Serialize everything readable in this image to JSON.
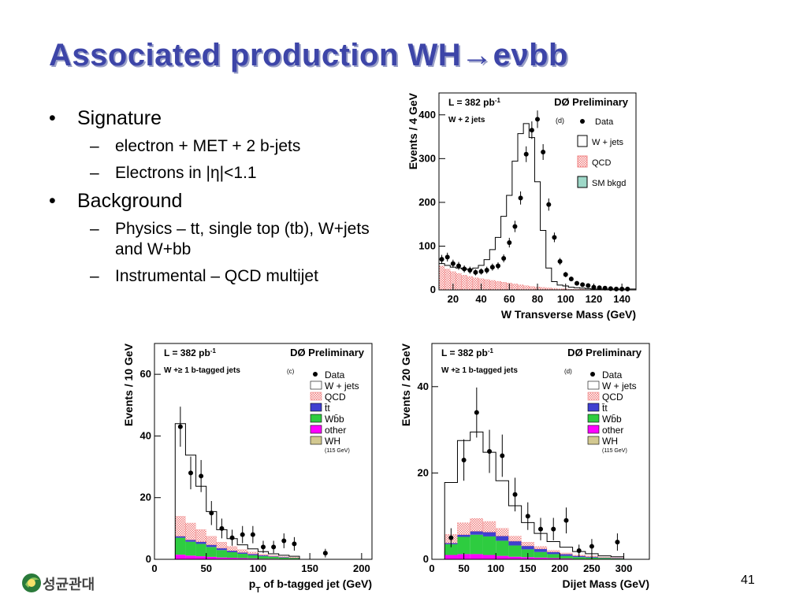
{
  "slide": {
    "title": "Associated production WH→eνbb",
    "bullets": [
      {
        "label": "Signature",
        "sub": [
          "electron + MET + 2 b-jets",
          "Electrons in |η|<1.1"
        ]
      },
      {
        "label": "Background",
        "sub": [
          "Physics – tt, single top (tb), W+jets and W+bb",
          "Instrumental – QCD multijet"
        ]
      }
    ],
    "page_number": "41",
    "logo_text": "성균관대",
    "colors": {
      "title": "#3d45a8",
      "qcd": "#f08080",
      "ttbar": "#4040d0",
      "wbb": "#2ecc40",
      "other": "#ff00ff",
      "wh": "#d2c890",
      "smbkgd": "#9ed8c8"
    }
  },
  "chart_data": [
    {
      "type": "bar",
      "xlabel": "W Transverse Mass  (GeV)",
      "ylabel": "Events / 4 GeV",
      "xlim": [
        10,
        150
      ],
      "ylim": [
        0,
        450
      ],
      "xticks": [
        20,
        40,
        60,
        80,
        100,
        120,
        140
      ],
      "yticks": [
        0,
        100,
        200,
        300,
        400
      ],
      "lumi": "L = 382 pb",
      "lumi_sup": "-1",
      "experiment": "DØ Preliminary",
      "selection": "W + 2 jets",
      "panel": "(d)",
      "legend": [
        "Data",
        "W + jets",
        "QCD",
        "SM bkgd"
      ],
      "bin_width": 4,
      "bin_start": 10,
      "stack_order": [
        "qcd",
        "wjets"
      ],
      "qcd": [
        55,
        48,
        42,
        38,
        34,
        31,
        28,
        26,
        24,
        22,
        20,
        18,
        16,
        14,
        12,
        10,
        8,
        7,
        6,
        5,
        4,
        3,
        3,
        2,
        2,
        2,
        1,
        1,
        1,
        1,
        1,
        1,
        1,
        1,
        1
      ],
      "wjets": [
        5,
        8,
        10,
        12,
        14,
        16,
        22,
        30,
        45,
        70,
        100,
        150,
        200,
        280,
        345,
        370,
        340,
        240,
        130,
        45,
        15,
        8,
        6,
        4,
        3,
        2,
        2,
        1,
        1,
        1,
        1,
        1,
        1,
        1,
        1
      ],
      "data_x": [
        12,
        16,
        20,
        24,
        28,
        32,
        36,
        40,
        44,
        48,
        52,
        56,
        60,
        64,
        68,
        72,
        76,
        80,
        84,
        88,
        92,
        96,
        100,
        104,
        108,
        112,
        116,
        120,
        124,
        128,
        132,
        136,
        140,
        144
      ],
      "data_y": [
        70,
        75,
        60,
        55,
        48,
        45,
        40,
        42,
        45,
        52,
        55,
        72,
        108,
        145,
        210,
        310,
        365,
        390,
        315,
        195,
        120,
        65,
        35,
        25,
        15,
        12,
        10,
        6,
        5,
        4,
        3,
        2,
        2,
        2
      ],
      "data_err": [
        10,
        10,
        9,
        9,
        8,
        8,
        7,
        7,
        8,
        8,
        8,
        9,
        11,
        13,
        15,
        18,
        20,
        20,
        18,
        14,
        11,
        8,
        6,
        5,
        4,
        4,
        3,
        3,
        2,
        2,
        2,
        2,
        2,
        2
      ]
    },
    {
      "type": "bar",
      "xlabel": "p",
      "xlabel_sub": "T",
      "xlabel_rest": " of b-tagged jet  (GeV)",
      "ylabel": "Events / 10 GeV",
      "xlim": [
        0,
        210
      ],
      "ylim": [
        0,
        70
      ],
      "xticks": [
        0,
        50,
        100,
        150,
        200
      ],
      "yticks": [
        0,
        20,
        40,
        60
      ],
      "lumi": "L = 382 pb",
      "lumi_sup": "-1",
      "experiment": "DØ Preliminary",
      "selection": "W +≥ 1 b-tagged jets",
      "panel": "(c)",
      "legend": [
        "Data",
        "W + jets",
        "QCD",
        "t̄t",
        "Wb̄b",
        "other",
        "WH"
      ],
      "legend_note": "(115 GeV)",
      "bin_width": 10,
      "bin_start": 20,
      "stack_order": [
        "other",
        "wbb",
        "ttbar",
        "qcd",
        "wjets"
      ],
      "other": [
        1.5,
        1.2,
        1.0,
        0.8,
        0.6,
        0.5,
        0.4,
        0.3,
        0.2,
        0.2,
        0.1,
        0.1
      ],
      "wbb": [
        5.5,
        4.5,
        4.0,
        3.2,
        2.4,
        1.8,
        1.4,
        1.0,
        0.8,
        0.6,
        0.4,
        0.3
      ],
      "ttbar": [
        0.5,
        0.6,
        0.7,
        0.7,
        0.6,
        0.5,
        0.4,
        0.4,
        0.3,
        0.2,
        0.2,
        0.1
      ],
      "qcd": [
        6.5,
        5.5,
        4.0,
        2.8,
        2.0,
        1.4,
        1.0,
        0.7,
        0.4,
        0.3,
        0.2,
        0.2
      ],
      "wjets": [
        30.0,
        22.0,
        14.0,
        8.0,
        4.0,
        2.5,
        1.5,
        1.0,
        0.8,
        0.5,
        0.4,
        0.3
      ],
      "data_x": [
        25,
        35,
        45,
        55,
        65,
        75,
        85,
        95,
        105,
        115,
        125,
        135,
        165
      ],
      "data_y": [
        43,
        28,
        27,
        15,
        10,
        7,
        8,
        8,
        4,
        4,
        6,
        5,
        2
      ],
      "data_err": [
        6.5,
        5.3,
        5.2,
        3.9,
        3.2,
        2.6,
        2.8,
        2.8,
        2.0,
        2.0,
        2.4,
        2.2,
        1.4
      ]
    },
    {
      "type": "bar",
      "xlabel": "Dijet Mass  (GeV)",
      "ylabel": "Events / 20 GeV",
      "xlim": [
        0,
        340
      ],
      "ylim": [
        0,
        50
      ],
      "xticks": [
        0,
        50,
        100,
        150,
        200,
        250,
        300
      ],
      "yticks": [
        0,
        20,
        40
      ],
      "lumi": "L = 382 pb",
      "lumi_sup": "-1",
      "experiment": "DØ Preliminary",
      "selection": "W +≥ 1 b-tagged jets",
      "panel": "(d)",
      "legend": [
        "Data",
        "W + jets",
        "QCD",
        "t̄t",
        "Wb̄b",
        "other",
        "WH"
      ],
      "legend_note": "(115 GeV)",
      "bin_width": 20,
      "bin_start": 20,
      "stack_order": [
        "other",
        "wbb",
        "ttbar",
        "qcd",
        "wjets"
      ],
      "other": [
        1.0,
        1.2,
        1.2,
        1.0,
        0.8,
        0.6,
        0.5,
        0.4,
        0.3,
        0.2,
        0.1,
        0.1,
        0.1,
        0.1
      ],
      "wbb": [
        2.5,
        4.0,
        4.5,
        4.3,
        3.5,
        2.6,
        1.8,
        1.3,
        0.9,
        0.6,
        0.4,
        0.3,
        0.2,
        0.1
      ],
      "ttbar": [
        0.3,
        0.5,
        0.8,
        1.0,
        1.1,
        1.0,
        0.8,
        0.7,
        0.5,
        0.4,
        0.3,
        0.2,
        0.1,
        0.1
      ],
      "qcd": [
        2.0,
        2.8,
        3.0,
        2.5,
        1.8,
        1.2,
        0.9,
        0.6,
        0.4,
        0.3,
        0.2,
        0.2,
        0.1,
        0.1
      ],
      "wjets": [
        12.0,
        19.0,
        20.0,
        16.0,
        11.0,
        7.0,
        4.5,
        3.0,
        2.0,
        1.3,
        0.8,
        0.5,
        0.3,
        0.2
      ],
      "data_x": [
        30,
        50,
        70,
        90,
        110,
        130,
        150,
        170,
        190,
        210,
        230,
        250,
        290
      ],
      "data_y": [
        5,
        23,
        34,
        25,
        24,
        15,
        10,
        7,
        7,
        9,
        2,
        3,
        4
      ],
      "data_err": [
        2.2,
        4.8,
        5.8,
        5.0,
        4.9,
        3.9,
        3.2,
        2.6,
        2.6,
        3.0,
        1.4,
        1.7,
        2.0
      ]
    }
  ]
}
